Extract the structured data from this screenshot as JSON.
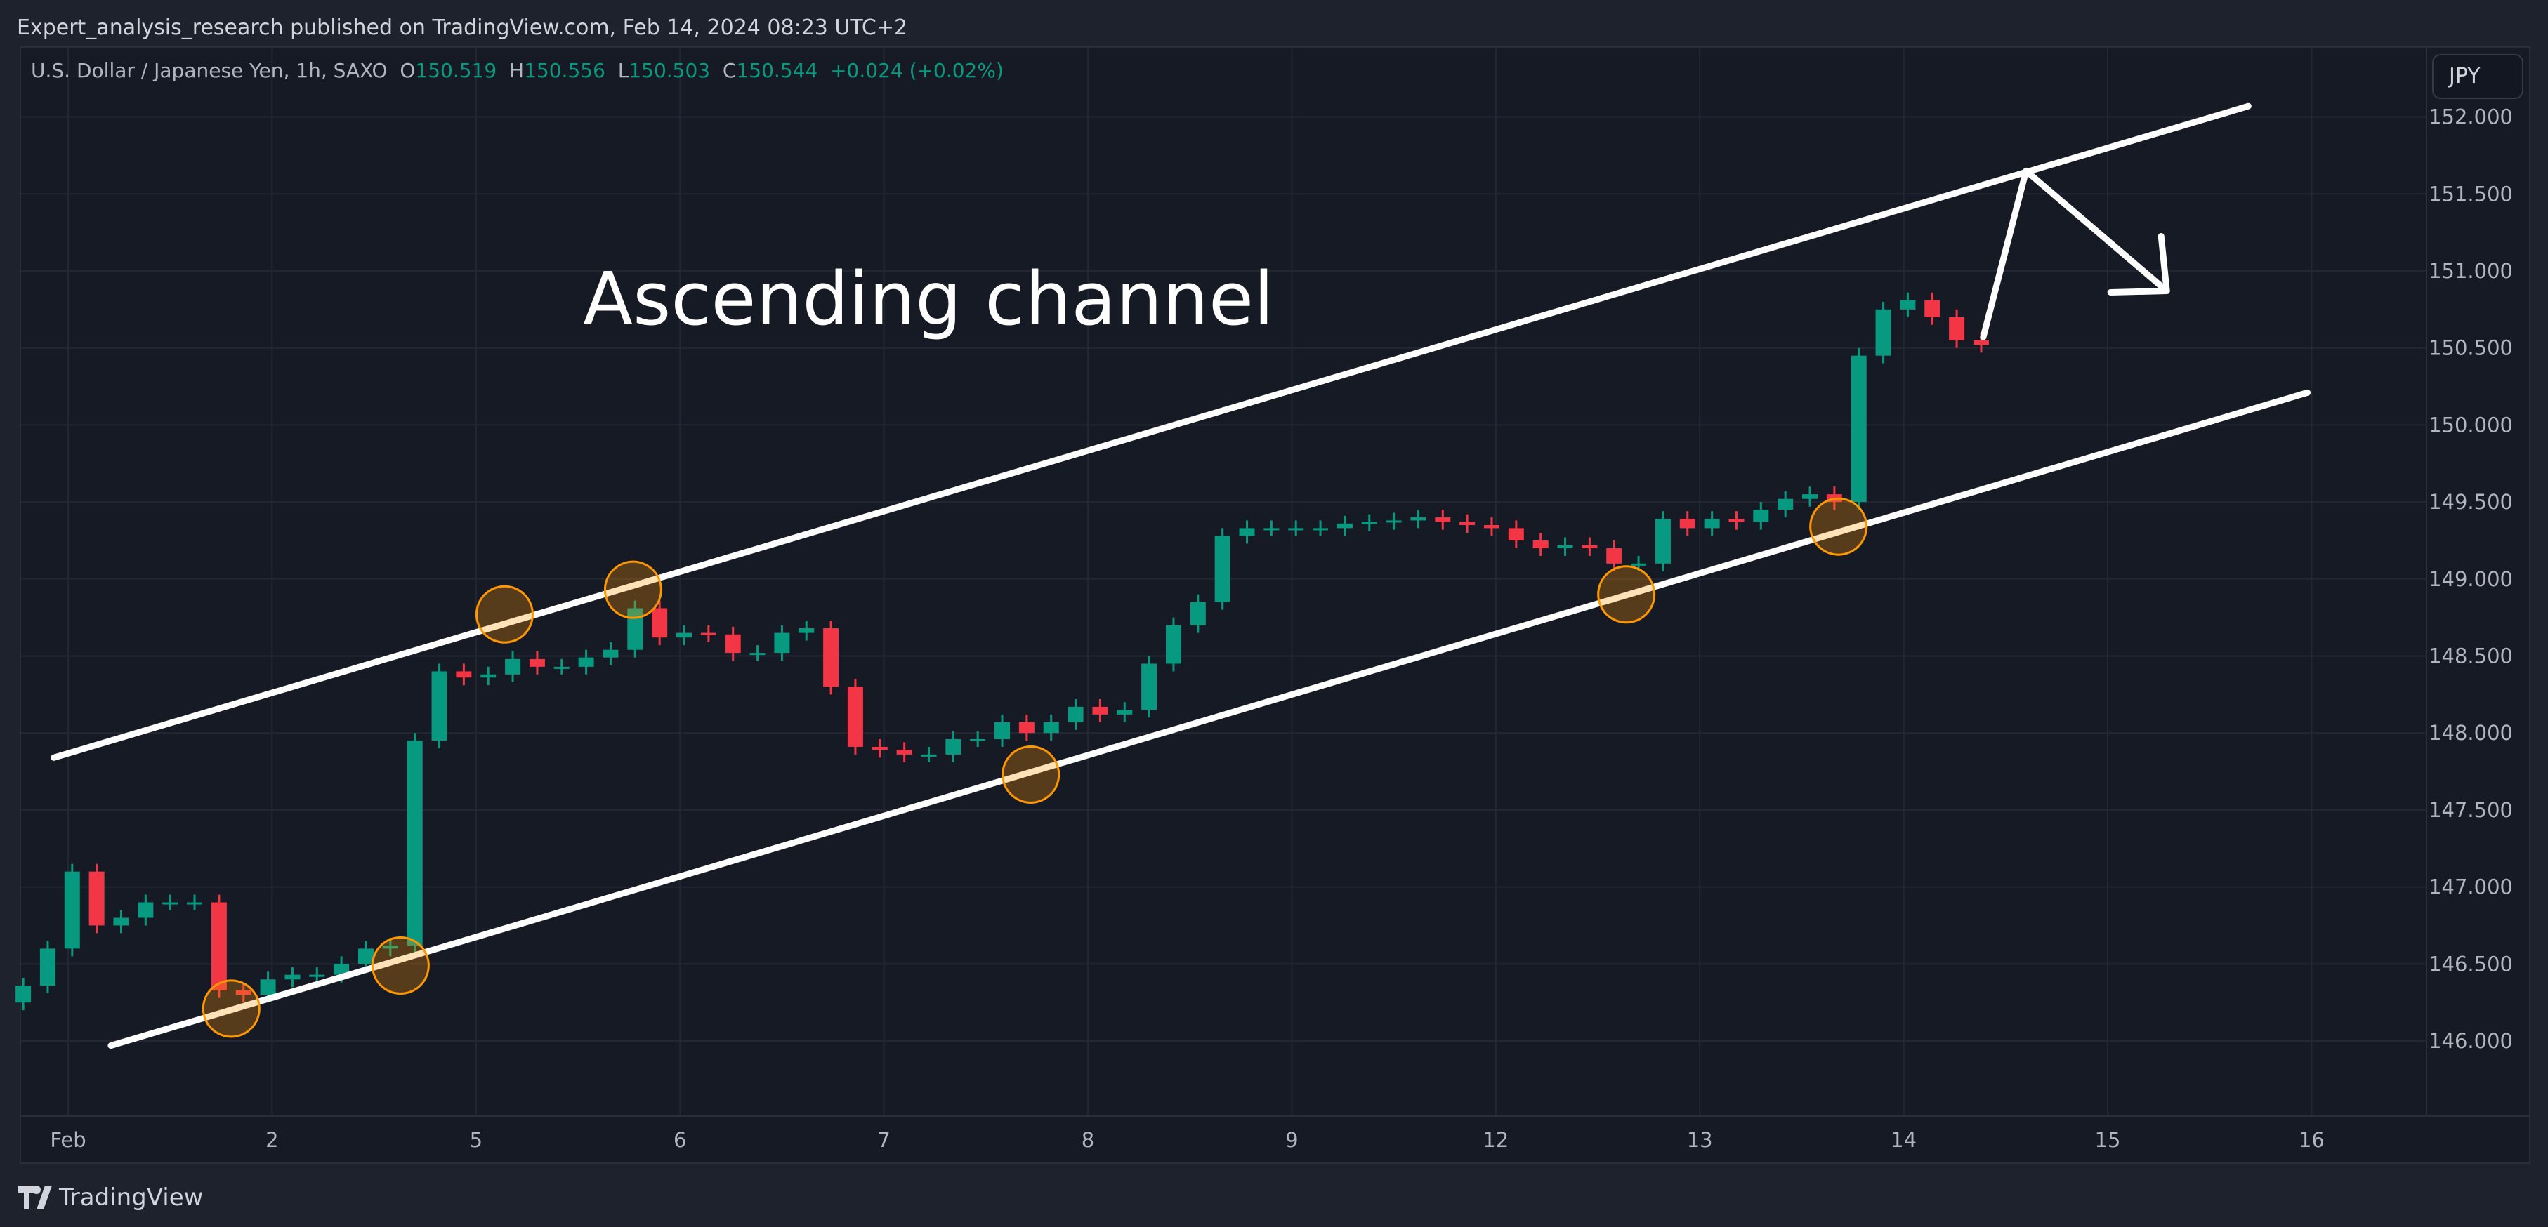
{
  "header": {
    "published": "Expert_analysis_research published on TradingView.com, Feb 14, 2024 08:23 UTC+2"
  },
  "legend": {
    "symbol": "U.S. Dollar / Japanese Yen, 1h, SAXO",
    "o_label": "O",
    "o": "150.519",
    "h_label": "H",
    "h": "150.556",
    "l_label": "L",
    "l": "150.503",
    "c_label": "C",
    "c": "150.544",
    "change": "+0.024 (+0.02%)"
  },
  "currency_button": "JPY",
  "footer": {
    "brand": "TradingView"
  },
  "colors": {
    "up": "#089981",
    "down": "#f23645",
    "line": "#ffffff",
    "circle": "#ff9800"
  },
  "chart_data": {
    "type": "candlestick",
    "title": "U.S. Dollar / Japanese Yen, 1h, SAXO",
    "annotation": "Ascending channel",
    "ylim": [
      145.72,
      152.3
    ],
    "yticks": [
      "146.000",
      "146.500",
      "147.000",
      "147.500",
      "148.000",
      "148.500",
      "149.000",
      "149.500",
      "150.000",
      "150.500",
      "151.000",
      "151.500",
      "152.000"
    ],
    "xticks": [
      {
        "t": 0,
        "label": "Feb"
      },
      {
        "t": 1,
        "label": "2"
      },
      {
        "t": 2,
        "label": "5"
      },
      {
        "t": 3,
        "label": "6"
      },
      {
        "t": 4,
        "label": "7"
      },
      {
        "t": 5,
        "label": "8"
      },
      {
        "t": 6,
        "label": "9"
      },
      {
        "t": 7,
        "label": "12"
      },
      {
        "t": 8,
        "label": "13"
      },
      {
        "t": 9,
        "label": "14"
      },
      {
        "t": 10,
        "label": "15"
      },
      {
        "t": 11,
        "label": "16"
      }
    ],
    "x_units": "trading days from Feb 1",
    "start_t": -0.22,
    "step_t": 0.12,
    "first_open": 146.25,
    "closes": [
      146.36,
      146.6,
      147.1,
      146.75,
      146.8,
      146.9,
      146.9,
      146.9,
      146.33,
      146.3,
      146.4,
      146.43,
      146.43,
      146.5,
      146.6,
      146.62,
      147.95,
      148.4,
      148.36,
      148.38,
      148.48,
      148.43,
      148.43,
      148.49,
      148.54,
      148.81,
      148.62,
      148.65,
      148.64,
      148.52,
      148.52,
      148.65,
      148.68,
      148.3,
      147.91,
      147.89,
      147.86,
      147.86,
      147.96,
      147.96,
      148.07,
      148.0,
      148.07,
      148.17,
      148.12,
      148.15,
      148.45,
      148.7,
      148.85,
      149.28,
      149.33,
      149.33,
      149.33,
      149.33,
      149.36,
      149.37,
      149.38,
      149.4,
      149.37,
      149.35,
      149.33,
      149.25,
      149.2,
      149.22,
      149.2,
      149.1,
      149.1,
      149.39,
      149.33,
      149.39,
      149.37,
      149.45,
      149.52,
      149.55,
      149.5,
      150.45,
      150.75,
      150.81,
      150.7,
      150.55,
      150.52
    ],
    "channel_upper": [
      [
        -0.07,
        147.84
      ],
      [
        10.69,
        152.07
      ]
    ],
    "channel_lower": [
      [
        0.21,
        145.97
      ],
      [
        10.98,
        150.21
      ]
    ],
    "projection_arrow": [
      [
        9.39,
        150.57
      ],
      [
        9.6,
        151.65
      ],
      [
        10.29,
        150.87
      ]
    ],
    "touch_points": [
      [
        0.8,
        146.21
      ],
      [
        1.63,
        146.49
      ],
      [
        2.14,
        148.77
      ],
      [
        2.77,
        148.93
      ],
      [
        4.72,
        147.73
      ],
      [
        7.64,
        148.9
      ],
      [
        8.68,
        149.34
      ]
    ]
  }
}
